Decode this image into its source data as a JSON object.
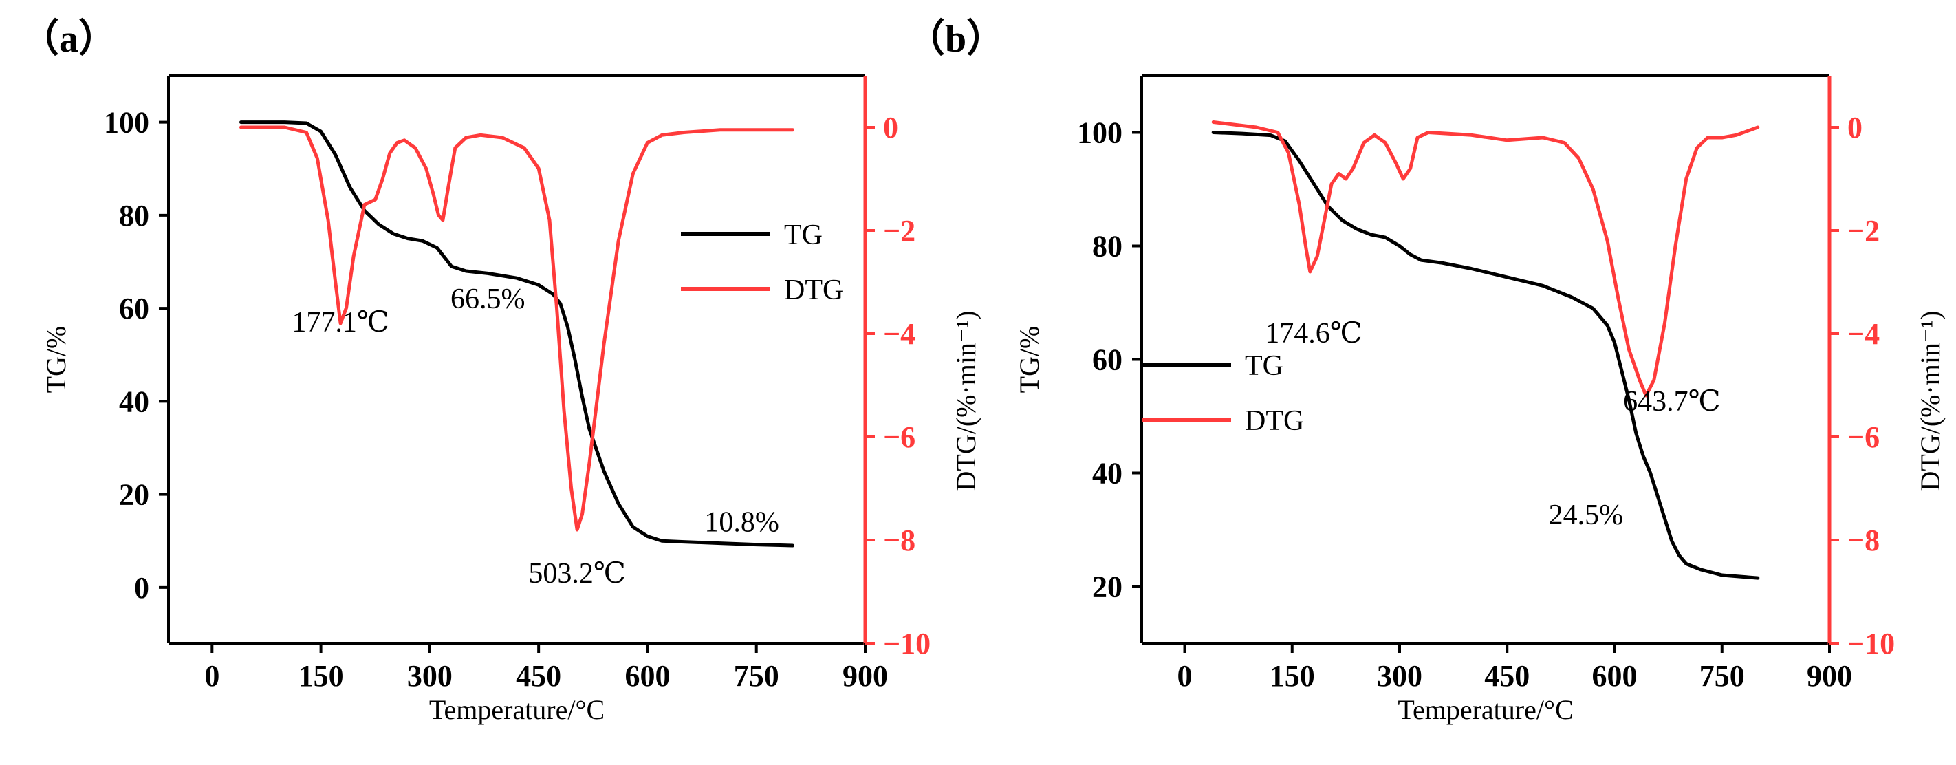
{
  "chart_data": [
    {
      "type": "line",
      "panel_label": "（a）",
      "xlabel": "Temperature/°C",
      "ylabel": "TG/%",
      "ylabel_right": "DTG/(%·min⁻¹)",
      "xlim": [
        -60,
        900
      ],
      "ylim": [
        -12,
        110
      ],
      "ylim_right": [
        -10,
        1
      ],
      "x_ticks": [
        0,
        150,
        300,
        450,
        600,
        750,
        900
      ],
      "y_ticks": [
        0,
        20,
        40,
        60,
        80,
        100
      ],
      "y_right_ticks": [
        0,
        -2,
        -4,
        -6,
        -8,
        -10
      ],
      "colors": {
        "tg": "#000000",
        "dtg": "#ff3b3b"
      },
      "legend": {
        "position": "right-center",
        "entries": [
          "TG",
          "DTG"
        ]
      },
      "series": [
        {
          "name": "TG",
          "axis": "left",
          "x": [
            40,
            60,
            100,
            130,
            150,
            170,
            190,
            210,
            230,
            250,
            270,
            290,
            310,
            320,
            330,
            350,
            380,
            420,
            450,
            470,
            480,
            490,
            500,
            510,
            520,
            540,
            560,
            580,
            600,
            620,
            650,
            700,
            750,
            800
          ],
          "y": [
            100,
            100,
            100,
            99.8,
            98,
            93,
            86,
            81,
            78,
            76,
            75,
            74.5,
            73,
            71,
            69,
            68,
            67.5,
            66.5,
            65,
            63,
            61,
            56,
            49,
            41,
            34,
            25,
            18,
            13,
            11,
            10,
            9.8,
            9.5,
            9.2,
            9
          ]
        },
        {
          "name": "DTG",
          "axis": "right",
          "x": [
            40,
            100,
            130,
            145,
            160,
            170,
            177,
            185,
            195,
            210,
            225,
            235,
            245,
            255,
            265,
            280,
            295,
            305,
            312,
            318,
            325,
            335,
            350,
            370,
            400,
            430,
            450,
            465,
            475,
            485,
            495,
            503,
            510,
            520,
            540,
            560,
            580,
            600,
            620,
            650,
            700,
            750,
            800
          ],
          "y": [
            0,
            0,
            -0.1,
            -0.6,
            -1.8,
            -3,
            -3.8,
            -3.5,
            -2.5,
            -1.5,
            -1.4,
            -1,
            -0.5,
            -0.3,
            -0.25,
            -0.4,
            -0.8,
            -1.3,
            -1.7,
            -1.8,
            -1.2,
            -0.4,
            -0.2,
            -0.15,
            -0.2,
            -0.4,
            -0.8,
            -1.8,
            -3.5,
            -5.5,
            -7,
            -7.8,
            -7.5,
            -6.5,
            -4.2,
            -2.2,
            -0.9,
            -0.3,
            -0.15,
            -0.1,
            -0.05,
            -0.05,
            -0.05
          ]
        }
      ],
      "annotations": [
        {
          "text": "177.1℃",
          "x": 177,
          "y": 55
        },
        {
          "text": "66.5%",
          "x": 380,
          "y": 60
        },
        {
          "text": "503.2℃",
          "x": 503,
          "y": 1
        },
        {
          "text": "10.8%",
          "x": 730,
          "y": 12
        }
      ]
    },
    {
      "type": "line",
      "panel_label": "（b）",
      "xlabel": "Temperature/°C",
      "ylabel": "TG/%",
      "ylabel_right": "DTG/(%·min⁻¹)",
      "xlim": [
        -60,
        900
      ],
      "ylim": [
        10,
        110
      ],
      "ylim_right": [
        -10,
        1
      ],
      "x_ticks": [
        0,
        150,
        300,
        450,
        600,
        750,
        900
      ],
      "y_ticks": [
        20,
        40,
        60,
        80,
        100
      ],
      "y_right_ticks": [
        0,
        -2,
        -4,
        -6,
        -8,
        -10
      ],
      "colors": {
        "tg": "#000000",
        "dtg": "#ff3b3b"
      },
      "legend": {
        "position": "left-center",
        "entries": [
          "TG",
          "DTG"
        ]
      },
      "series": [
        {
          "name": "TG",
          "axis": "left",
          "x": [
            40,
            80,
            120,
            140,
            160,
            180,
            200,
            220,
            240,
            260,
            280,
            300,
            315,
            330,
            360,
            400,
            450,
            500,
            540,
            570,
            590,
            600,
            610,
            620,
            630,
            640,
            650,
            660,
            670,
            680,
            690,
            700,
            720,
            750,
            800
          ],
          "y": [
            100,
            99.8,
            99.5,
            98.5,
            95,
            91,
            87,
            84.5,
            83,
            82,
            81.5,
            80,
            78.5,
            77.5,
            77,
            76,
            74.5,
            73,
            71,
            69,
            66,
            63,
            58,
            53,
            47,
            43,
            40,
            36,
            32,
            28,
            25.5,
            24,
            23,
            22,
            21.5
          ]
        },
        {
          "name": "DTG",
          "axis": "right",
          "x": [
            40,
            100,
            130,
            145,
            160,
            170,
            175,
            185,
            195,
            205,
            215,
            225,
            235,
            250,
            265,
            280,
            295,
            305,
            315,
            325,
            340,
            400,
            450,
            500,
            530,
            550,
            570,
            590,
            605,
            620,
            635,
            644,
            655,
            670,
            685,
            700,
            715,
            730,
            750,
            770,
            800
          ],
          "y": [
            0.1,
            0,
            -0.1,
            -0.5,
            -1.5,
            -2.4,
            -2.8,
            -2.5,
            -1.8,
            -1.1,
            -0.9,
            -1,
            -0.8,
            -0.3,
            -0.15,
            -0.3,
            -0.7,
            -1,
            -0.8,
            -0.2,
            -0.1,
            -0.15,
            -0.25,
            -0.2,
            -0.3,
            -0.6,
            -1.2,
            -2.2,
            -3.3,
            -4.3,
            -4.9,
            -5.2,
            -4.9,
            -3.8,
            -2.3,
            -1,
            -0.4,
            -0.2,
            -0.2,
            -0.15,
            0
          ]
        }
      ],
      "annotations": [
        {
          "text": "174.6℃",
          "x": 180,
          "y": 63
        },
        {
          "text": "643.7℃",
          "x": 680,
          "y": 51
        },
        {
          "text": "24.5%",
          "x": 560,
          "y": 31
        }
      ]
    }
  ]
}
